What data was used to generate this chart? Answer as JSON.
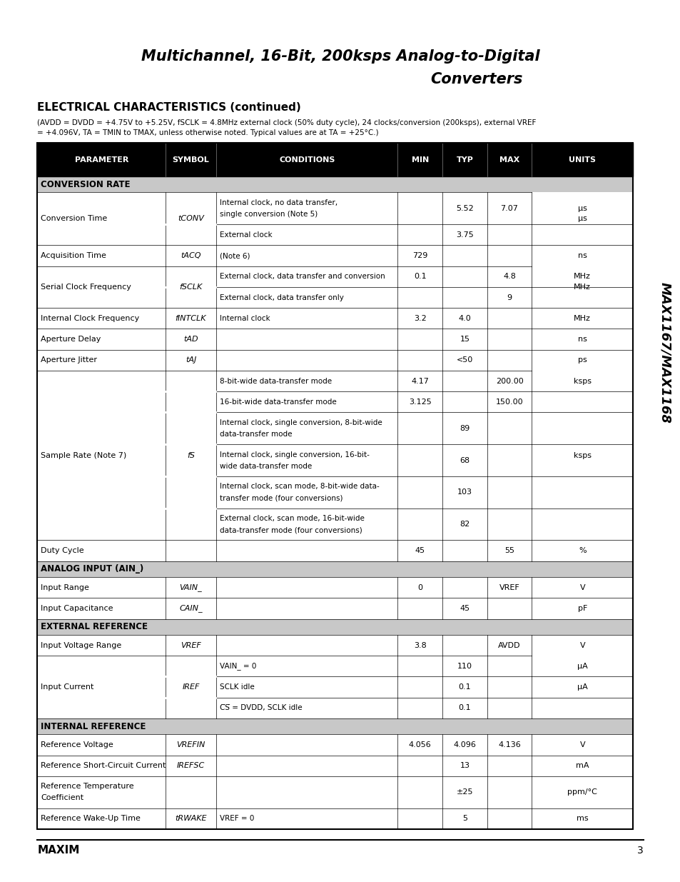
{
  "title_line1": "Multichannel, 16-Bit, 200ksps Analog-to-Digital",
  "title_line2": "Converters",
  "section_title": "ELECTRICAL CHARACTERISTICS (continued)",
  "subtitle1": "(AVDD = DVDD = +4.75V to +5.25V, fSCLK = 4.8MHz external clock (50% duty cycle), 24 clocks/conversion (200ksps), external VREF",
  "subtitle2": "= +4.096V, TA = TMIN to TMAX, unless otherwise noted. Typical values are at TA = +25°C.)",
  "side_text": "MAX1167/MAX1168",
  "footer_text": "MAXIM",
  "page_num": "3",
  "bg_color": "#ffffff",
  "header_bg": "#000000",
  "section_bg": "#c8c8c8",
  "col_headers": [
    "PARAMETER",
    "SYMBOL",
    "CONDITIONS",
    "MIN",
    "TYP",
    "MAX",
    "UNITS"
  ],
  "col_props": [
    0.215,
    0.085,
    0.305,
    0.075,
    0.075,
    0.075,
    0.07
  ],
  "rows": [
    {
      "type": "section",
      "label": "CONVERSION RATE"
    },
    {
      "type": "data",
      "param": "Conversion Time",
      "symbol": "tCONV",
      "cond": "Internal clock, no data transfer,\nsingle conversion (Note 5)",
      "min": "",
      "typ": "5.52",
      "max": "7.07",
      "units": "μs",
      "rowspan_param": 2,
      "rowspan_symbol": 2
    },
    {
      "type": "data",
      "param": "",
      "symbol": "",
      "cond": "External clock",
      "min": "",
      "typ": "3.75",
      "max": "",
      "units": ""
    },
    {
      "type": "data",
      "param": "Acquisition Time",
      "symbol": "tACQ",
      "cond": "(Note 6)",
      "min": "729",
      "typ": "",
      "max": "",
      "units": "ns"
    },
    {
      "type": "data",
      "param": "Serial Clock Frequency",
      "symbol": "fSCLK",
      "cond": "External clock, data transfer and conversion",
      "min": "0.1",
      "typ": "",
      "max": "4.8",
      "units": "MHz",
      "rowspan_param": 2,
      "rowspan_symbol": 2
    },
    {
      "type": "data",
      "param": "",
      "symbol": "",
      "cond": "External clock, data transfer only",
      "min": "",
      "typ": "",
      "max": "9",
      "units": ""
    },
    {
      "type": "data",
      "param": "Internal Clock Frequency",
      "symbol": "fINTCLK",
      "cond": "Internal clock",
      "min": "3.2",
      "typ": "4.0",
      "max": "",
      "units": "MHz"
    },
    {
      "type": "data",
      "param": "Aperture Delay",
      "symbol": "tAD",
      "cond": "",
      "min": "",
      "typ": "15",
      "max": "",
      "units": "ns"
    },
    {
      "type": "data",
      "param": "Aperture Jitter",
      "symbol": "tAJ",
      "cond": "",
      "min": "",
      "typ": "<50",
      "max": "",
      "units": "ps"
    },
    {
      "type": "data",
      "param": "Sample Rate (Note 7)",
      "symbol": "fS",
      "cond": "8-bit-wide data-transfer mode",
      "min": "4.17",
      "typ": "",
      "max": "200.00",
      "units": "ksps",
      "rowspan_param": 6,
      "rowspan_symbol": 6
    },
    {
      "type": "data",
      "param": "",
      "symbol": "",
      "cond": "16-bit-wide data-transfer mode",
      "min": "3.125",
      "typ": "",
      "max": "150.00",
      "units": ""
    },
    {
      "type": "data",
      "param": "",
      "symbol": "",
      "cond": "Internal clock, single conversion, 8-bit-wide\ndata-transfer mode",
      "min": "",
      "typ": "89",
      "max": "",
      "units": ""
    },
    {
      "type": "data",
      "param": "",
      "symbol": "",
      "cond": "Internal clock, single conversion, 16-bit-\nwide data-transfer mode",
      "min": "",
      "typ": "68",
      "max": "",
      "units": ""
    },
    {
      "type": "data",
      "param": "",
      "symbol": "",
      "cond": "Internal clock, scan mode, 8-bit-wide data-\ntransfer mode (four conversions)",
      "min": "",
      "typ": "103",
      "max": "",
      "units": ""
    },
    {
      "type": "data",
      "param": "",
      "symbol": "",
      "cond": "External clock, scan mode, 16-bit-wide\ndata-transfer mode (four conversions)",
      "min": "",
      "typ": "82",
      "max": "",
      "units": ""
    },
    {
      "type": "data",
      "param": "Duty Cycle",
      "symbol": "",
      "cond": "",
      "min": "45",
      "typ": "",
      "max": "55",
      "units": "%"
    },
    {
      "type": "section",
      "label": "ANALOG INPUT (AIN_)"
    },
    {
      "type": "data",
      "param": "Input Range",
      "symbol": "VAIN_",
      "cond": "",
      "min": "0",
      "typ": "",
      "max": "VREF",
      "units": "V"
    },
    {
      "type": "data",
      "param": "Input Capacitance",
      "symbol": "CAIN_",
      "cond": "",
      "min": "",
      "typ": "45",
      "max": "",
      "units": "pF"
    },
    {
      "type": "section",
      "label": "EXTERNAL REFERENCE"
    },
    {
      "type": "data",
      "param": "Input Voltage Range",
      "symbol": "VREF",
      "cond": "",
      "min": "3.8",
      "typ": "",
      "max": "AVDD",
      "units": "V"
    },
    {
      "type": "data",
      "param": "Input Current",
      "symbol": "IREF",
      "cond": "VAIN_ = 0",
      "min": "",
      "typ": "110",
      "max": "",
      "units": "μA",
      "rowspan_param": 3,
      "rowspan_symbol": 3
    },
    {
      "type": "data",
      "param": "",
      "symbol": "",
      "cond": "SCLK idle",
      "min": "",
      "typ": "0.1",
      "max": "",
      "units": ""
    },
    {
      "type": "data",
      "param": "",
      "symbol": "",
      "cond": "CS = DVDD, SCLK idle",
      "min": "",
      "typ": "0.1",
      "max": "",
      "units": "",
      "cs_overline": true
    },
    {
      "type": "section",
      "label": "INTERNAL REFERENCE"
    },
    {
      "type": "data",
      "param": "Reference Voltage",
      "symbol": "VREFIN",
      "cond": "",
      "min": "4.056",
      "typ": "4.096",
      "max": "4.136",
      "units": "V"
    },
    {
      "type": "data",
      "param": "Reference Short-Circuit Current",
      "symbol": "IREFSC",
      "cond": "",
      "min": "",
      "typ": "13",
      "max": "",
      "units": "mA"
    },
    {
      "type": "data",
      "param": "Reference Temperature\nCoefficient",
      "symbol": "",
      "cond": "",
      "min": "",
      "typ": "±25",
      "max": "",
      "units": "ppm/°C"
    },
    {
      "type": "data",
      "param": "Reference Wake-Up Time",
      "symbol": "tRWAKE",
      "cond": "VREF = 0",
      "min": "",
      "typ": "5",
      "max": "",
      "units": "ms"
    }
  ]
}
